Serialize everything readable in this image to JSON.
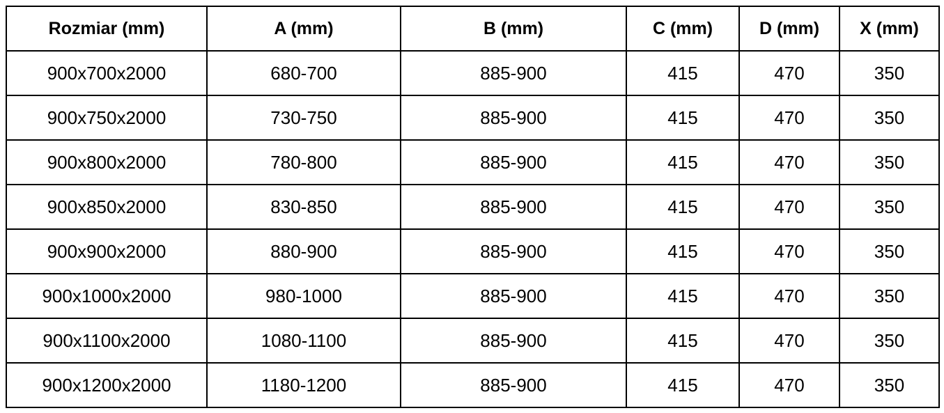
{
  "table": {
    "headers": [
      "Rozmiar (mm)",
      "A (mm)",
      "B (mm)",
      "C (mm)",
      "D (mm)",
      "X (mm)"
    ],
    "rows": [
      [
        "900x700x2000",
        "680-700",
        "885-900",
        "415",
        "470",
        "350"
      ],
      [
        "900x750x2000",
        "730-750",
        "885-900",
        "415",
        "470",
        "350"
      ],
      [
        "900x800x2000",
        "780-800",
        "885-900",
        "415",
        "470",
        "350"
      ],
      [
        "900x850x2000",
        "830-850",
        "885-900",
        "415",
        "470",
        "350"
      ],
      [
        "900x900x2000",
        "880-900",
        "885-900",
        "415",
        "470",
        "350"
      ],
      [
        "900x1000x2000",
        "980-1000",
        "885-900",
        "415",
        "470",
        "350"
      ],
      [
        "900x1100x2000",
        "1080-1100",
        "885-900",
        "415",
        "470",
        "350"
      ],
      [
        "900x1200x2000",
        "1180-1200",
        "885-900",
        "415",
        "470",
        "350"
      ]
    ]
  }
}
